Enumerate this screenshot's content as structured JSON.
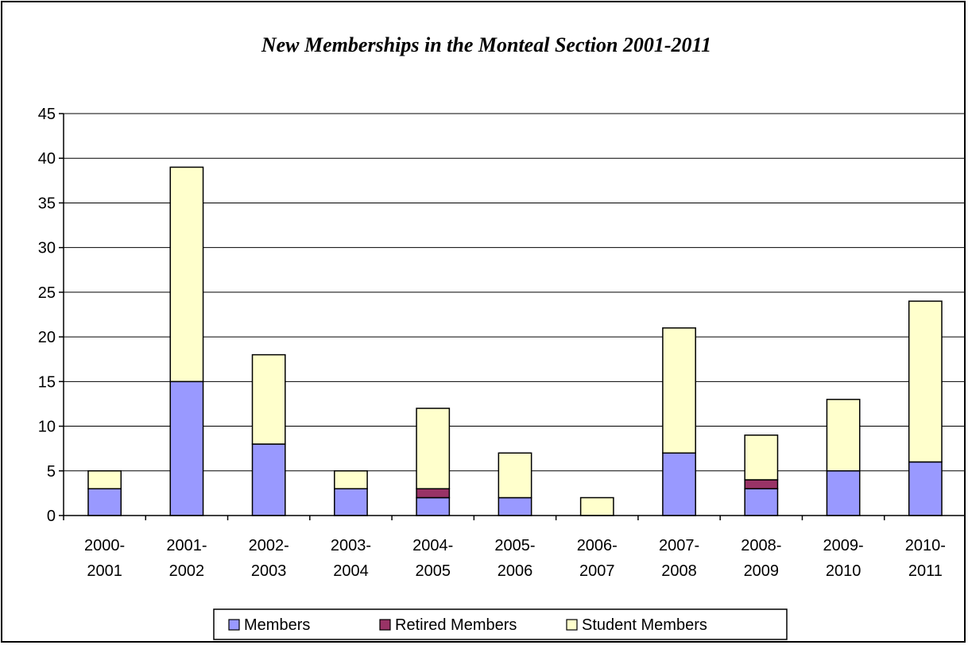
{
  "chart_data": {
    "type": "bar",
    "stacked": true,
    "title": "New Memberships in the Monteal Section 2001-2011",
    "xlabel": "",
    "ylabel": "",
    "ylim": [
      0,
      45
    ],
    "yticks": [
      0,
      5,
      10,
      15,
      20,
      25,
      30,
      35,
      40,
      45
    ],
    "grid": true,
    "legend_position": "bottom",
    "categories": [
      [
        "2000-",
        "2001"
      ],
      [
        "2001-",
        "2002"
      ],
      [
        "2002-",
        "2003"
      ],
      [
        "2003-",
        "2004"
      ],
      [
        "2004-",
        "2005"
      ],
      [
        "2005-",
        "2006"
      ],
      [
        "2006-",
        "2007"
      ],
      [
        "2007-",
        "2008"
      ],
      [
        "2008-",
        "2009"
      ],
      [
        "2009-",
        "2010"
      ],
      [
        "2010-",
        "2011"
      ]
    ],
    "series": [
      {
        "name": "Members",
        "color": "#9999ff",
        "values": [
          3,
          15,
          8,
          3,
          2,
          2,
          0,
          7,
          3,
          5,
          6
        ]
      },
      {
        "name": "Retired Members",
        "color": "#993366",
        "values": [
          0,
          0,
          0,
          0,
          1,
          0,
          0,
          0,
          1,
          0,
          0
        ]
      },
      {
        "name": "Student Members",
        "color": "#ffffcc",
        "values": [
          2,
          24,
          10,
          2,
          9,
          5,
          2,
          14,
          5,
          8,
          18
        ]
      }
    ]
  }
}
